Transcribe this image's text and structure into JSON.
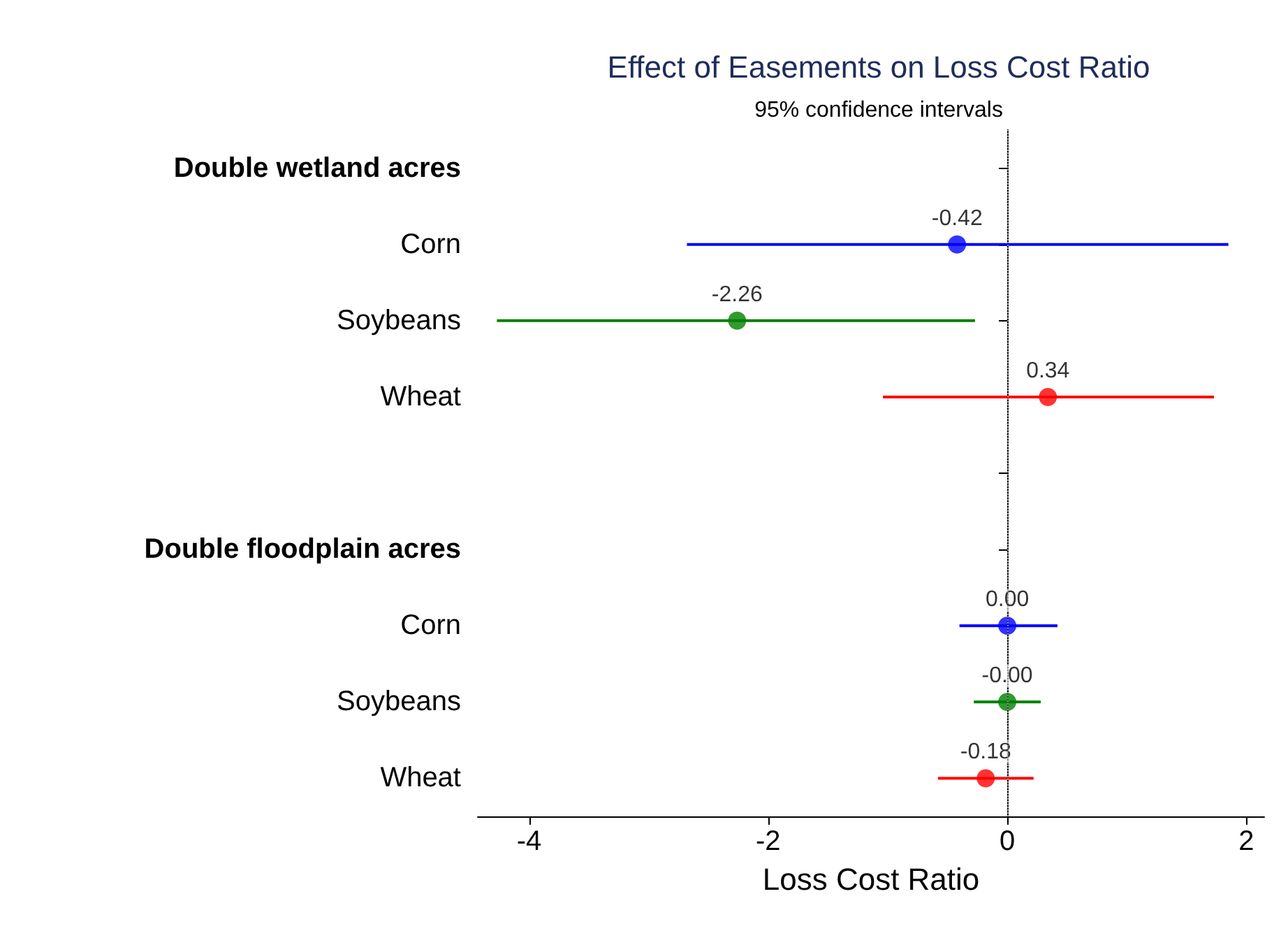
{
  "chart_data": {
    "type": "scatter",
    "orientation": "horizontal",
    "title": "Effect of Easements on Loss Cost Ratio",
    "subtitle": "95% confidence intervals",
    "xlabel": "Loss Cost Ratio",
    "categories": [
      "Double wetland acres",
      "Corn",
      "Soybeans",
      "Wheat",
      null,
      "Double floodplain acres",
      "Corn",
      "Soybeans",
      "Wheat"
    ],
    "values": [
      null,
      -0.42,
      -2.26,
      0.34,
      null,
      null,
      0.0,
      -0.0,
      -0.18
    ],
    "value_labels": [
      null,
      "-0.42",
      "-2.26",
      "0.34",
      null,
      null,
      "0.00",
      "-0.00",
      "-0.18"
    ],
    "errors": [
      null,
      [
        -2.68,
        1.85
      ],
      [
        -4.27,
        -0.27
      ],
      [
        -1.04,
        1.73
      ],
      null,
      null,
      [
        -0.4,
        0.42
      ],
      [
        -0.28,
        0.28
      ],
      [
        -0.58,
        0.22
      ]
    ],
    "colors": [
      null,
      "#0000ff",
      "#008000",
      "#ff0000",
      null,
      null,
      "#0000ff",
      "#008000",
      "#ff0000"
    ],
    "xlim": [
      -4.43,
      2.15
    ],
    "xticks": [
      -4,
      -2,
      0,
      2
    ],
    "ref_lines": [
      {
        "axis": "x",
        "value": 0,
        "label": null,
        "color": "#888888",
        "line_style": "dotted"
      }
    ],
    "marker": "circle",
    "grid": false
  }
}
